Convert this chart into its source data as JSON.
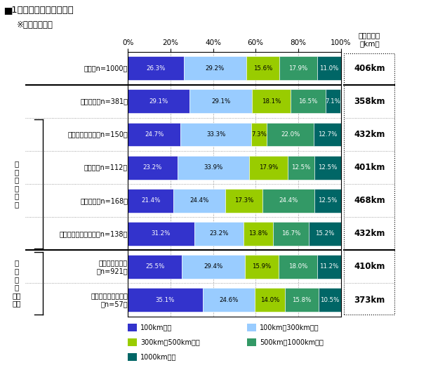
{
  "title": "▆1ヵ月あたりの走行距離",
  "subtitle": "※単一回答形式",
  "right_col_title": "加重平均値\n（km）",
  "categories": [
    "全体「n=1000」",
    "軽自動車「n=381」",
    "コンパクトカー「n=150」",
    "セダン「n=112」",
    "ミニバン「n=168」",
    "ステーションワゴン「n=138」",
    "ガソリン自動車\n「n=921」",
    "ハイブリッド自動車\n「n=57」"
  ],
  "values": [
    [
      26.3,
      29.2,
      15.6,
      17.9,
      11.0
    ],
    [
      29.1,
      29.1,
      18.1,
      16.5,
      7.1
    ],
    [
      24.7,
      33.3,
      7.3,
      22.0,
      12.7
    ],
    [
      23.2,
      33.9,
      17.9,
      12.5,
      12.5
    ],
    [
      21.4,
      24.4,
      17.3,
      24.4,
      12.5
    ],
    [
      31.2,
      23.2,
      13.8,
      16.7,
      15.2
    ],
    [
      25.5,
      29.4,
      15.9,
      18.0,
      11.2
    ],
    [
      35.1,
      24.6,
      14.0,
      15.8,
      10.5
    ]
  ],
  "avg_values": [
    "406km",
    "358km",
    "432km",
    "401km",
    "468km",
    "432km",
    "410km",
    "373km"
  ],
  "colors": [
    "#3333cc",
    "#99ccff",
    "#99cc00",
    "#339966",
    "#006666"
  ],
  "legend_labels": [
    "100km未満",
    "100km～300km未満",
    "300km～500km未満",
    "500km～1000km未満",
    "1000km以上"
  ],
  "body_type_label": "ボ\nデ\nィ\nタ\nイ\nプ",
  "fuel_label": "（\nエ\nン\nジ\nン）\n燃料",
  "text_colors": [
    "white",
    "black",
    "black",
    "white",
    "white"
  ]
}
